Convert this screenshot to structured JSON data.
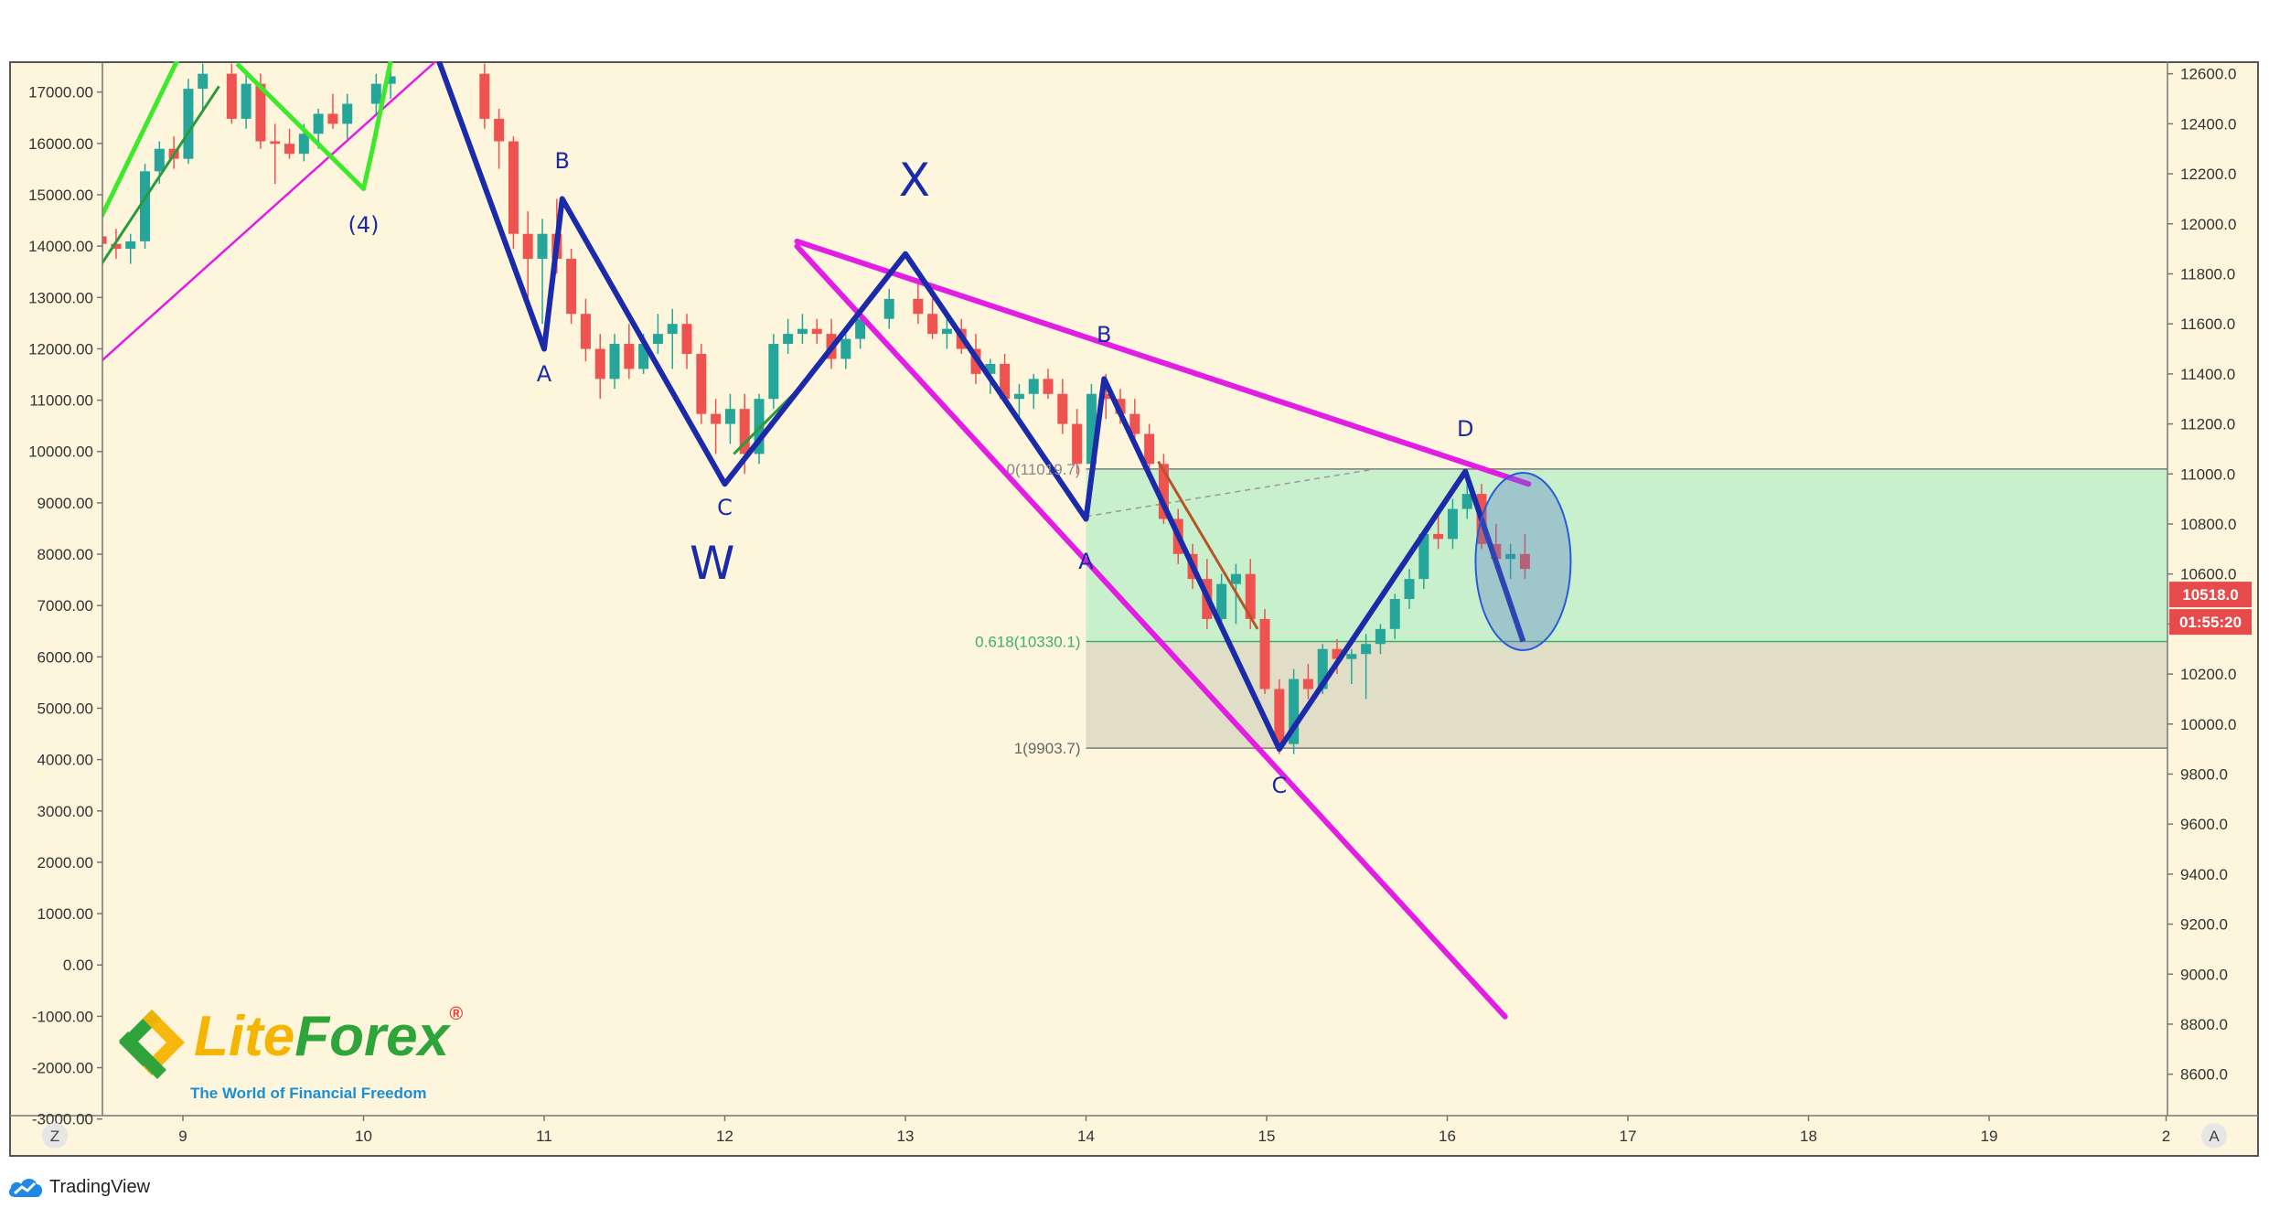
{
  "chart_data": {
    "type": "candlestick",
    "title": "",
    "xlabel": "",
    "ylabel": "",
    "x_axis": {
      "ticks": [
        "9",
        "10",
        "11",
        "12",
        "13",
        "14",
        "15",
        "16",
        "17",
        "18",
        "19",
        "2"
      ]
    },
    "left_axis": {
      "ticks": [
        "17000.00",
        "16000.00",
        "15000.00",
        "14000.00",
        "13000.00",
        "12000.00",
        "11000.00",
        "10000.00",
        "9000.00",
        "8000.00",
        "7000.00",
        "6000.00",
        "5000.00",
        "4000.00",
        "3000.00",
        "2000.00",
        "1000.00",
        "0.00",
        "-1000.00",
        "-2000.00",
        "-3000.00"
      ],
      "range": [
        -3000,
        17600
      ]
    },
    "right_axis": {
      "ticks": [
        "12600.0",
        "12400.0",
        "12200.0",
        "12000.0",
        "11800.0",
        "11600.0",
        "11400.0",
        "11200.0",
        "11000.0",
        "10800.0",
        "10600.0",
        "10400.0",
        "10200.0",
        "10000.0",
        "9800.0",
        "9600.0",
        "9400.0",
        "9200.0",
        "9000.0",
        "8800.0",
        "8600.0"
      ],
      "range": [
        8400,
        12600
      ]
    },
    "price_badge": "10518.0",
    "countdown_badge": "01:55:20",
    "fib_levels": [
      {
        "label": "0(11019.7)",
        "value": 11019.7
      },
      {
        "label": "0.618(10330.1)",
        "value": 10330.1
      },
      {
        "label": "1(9903.7)",
        "value": 9903.7
      }
    ],
    "wave_labels": {
      "wave_4": "(4)",
      "a1": "A",
      "b1": "B",
      "c1": "C",
      "w": "W",
      "x": "X",
      "a2": "A",
      "b2": "B",
      "c2": "C",
      "d": "D"
    },
    "wave_path_points": [
      {
        "label": "A",
        "x": 11.0,
        "price": 11500
      },
      {
        "label": "B",
        "x": 11.1,
        "price": 12100
      },
      {
        "label": "C",
        "x": 12.0,
        "price": 10960
      },
      {
        "label": "X",
        "x": 13.0,
        "price": 11880
      },
      {
        "label": "A",
        "x": 14.0,
        "price": 10820
      },
      {
        "label": "B",
        "x": 14.1,
        "price": 11380
      },
      {
        "label": "C",
        "x": 15.07,
        "price": 9900
      },
      {
        "label": "D",
        "x": 16.1,
        "price": 11010
      }
    ],
    "corner_left": "Z",
    "corner_right": "A",
    "colors": {
      "up": "#26a69a",
      "down": "#ef5350",
      "wave_line": "#1a2aa8",
      "channel": "#e11ee1",
      "impulse": "#3ee82a",
      "fib_upper_zone": "#c9f0cc",
      "fib_lower_zone": "#e0dec6",
      "badge": "#e64a4a"
    },
    "candles": [
      {
        "x": 8.55,
        "o": 11950,
        "h": 12030,
        "l": 11880,
        "c": 11920
      },
      {
        "x": 8.63,
        "o": 11920,
        "h": 11980,
        "l": 11860,
        "c": 11900
      },
      {
        "x": 8.71,
        "o": 11900,
        "h": 11960,
        "l": 11840,
        "c": 11930
      },
      {
        "x": 8.79,
        "o": 11930,
        "h": 12240,
        "l": 11900,
        "c": 12210
      },
      {
        "x": 8.87,
        "o": 12210,
        "h": 12330,
        "l": 12160,
        "c": 12300
      },
      {
        "x": 8.95,
        "o": 12300,
        "h": 12350,
        "l": 12220,
        "c": 12260
      },
      {
        "x": 9.03,
        "o": 12260,
        "h": 12580,
        "l": 12240,
        "c": 12540
      },
      {
        "x": 9.11,
        "o": 12540,
        "h": 12640,
        "l": 12450,
        "c": 12600
      },
      {
        "x": 9.27,
        "o": 12600,
        "h": 12640,
        "l": 12400,
        "c": 12420
      },
      {
        "x": 9.35,
        "o": 12420,
        "h": 12600,
        "l": 12380,
        "c": 12560
      },
      {
        "x": 9.43,
        "o": 12560,
        "h": 12600,
        "l": 12300,
        "c": 12330
      },
      {
        "x": 9.51,
        "o": 12330,
        "h": 12400,
        "l": 12160,
        "c": 12320
      },
      {
        "x": 9.59,
        "o": 12320,
        "h": 12380,
        "l": 12260,
        "c": 12280
      },
      {
        "x": 9.67,
        "o": 12280,
        "h": 12400,
        "l": 12250,
        "c": 12360
      },
      {
        "x": 9.75,
        "o": 12360,
        "h": 12460,
        "l": 12300,
        "c": 12440
      },
      {
        "x": 9.83,
        "o": 12440,
        "h": 12520,
        "l": 12380,
        "c": 12400
      },
      {
        "x": 9.91,
        "o": 12400,
        "h": 12520,
        "l": 12340,
        "c": 12480
      },
      {
        "x": 10.07,
        "o": 12480,
        "h": 12600,
        "l": 12440,
        "c": 12560
      },
      {
        "x": 10.15,
        "o": 12560,
        "h": 12620,
        "l": 12500,
        "c": 12590
      },
      {
        "x": 10.67,
        "o": 12600,
        "h": 12640,
        "l": 12380,
        "c": 12420
      },
      {
        "x": 10.75,
        "o": 12420,
        "h": 12460,
        "l": 12220,
        "c": 12330
      },
      {
        "x": 10.83,
        "o": 12330,
        "h": 12350,
        "l": 11900,
        "c": 11960
      },
      {
        "x": 10.91,
        "o": 11960,
        "h": 12050,
        "l": 11700,
        "c": 11860
      },
      {
        "x": 10.99,
        "o": 11860,
        "h": 12020,
        "l": 11600,
        "c": 11960
      },
      {
        "x": 11.07,
        "o": 11960,
        "h": 12100,
        "l": 11800,
        "c": 11860
      },
      {
        "x": 11.15,
        "o": 11860,
        "h": 11900,
        "l": 11600,
        "c": 11640
      },
      {
        "x": 11.23,
        "o": 11640,
        "h": 11700,
        "l": 11450,
        "c": 11500
      },
      {
        "x": 11.31,
        "o": 11500,
        "h": 11560,
        "l": 11300,
        "c": 11380
      },
      {
        "x": 11.39,
        "o": 11380,
        "h": 11560,
        "l": 11340,
        "c": 11520
      },
      {
        "x": 11.47,
        "o": 11520,
        "h": 11600,
        "l": 11380,
        "c": 11420
      },
      {
        "x": 11.55,
        "o": 11420,
        "h": 11560,
        "l": 11400,
        "c": 11520
      },
      {
        "x": 11.63,
        "o": 11520,
        "h": 11640,
        "l": 11480,
        "c": 11560
      },
      {
        "x": 11.71,
        "o": 11560,
        "h": 11660,
        "l": 11420,
        "c": 11600
      },
      {
        "x": 11.79,
        "o": 11600,
        "h": 11640,
        "l": 11420,
        "c": 11480
      },
      {
        "x": 11.87,
        "o": 11480,
        "h": 11520,
        "l": 11200,
        "c": 11240
      },
      {
        "x": 11.95,
        "o": 11240,
        "h": 11300,
        "l": 11080,
        "c": 11200
      },
      {
        "x": 12.03,
        "o": 11200,
        "h": 11320,
        "l": 11120,
        "c": 11260
      },
      {
        "x": 12.11,
        "o": 11260,
        "h": 11320,
        "l": 11000,
        "c": 11080
      },
      {
        "x": 12.19,
        "o": 11080,
        "h": 11320,
        "l": 11040,
        "c": 11300
      },
      {
        "x": 12.27,
        "o": 11300,
        "h": 11560,
        "l": 11260,
        "c": 11520
      },
      {
        "x": 12.35,
        "o": 11520,
        "h": 11620,
        "l": 11480,
        "c": 11560
      },
      {
        "x": 12.43,
        "o": 11560,
        "h": 11640,
        "l": 11520,
        "c": 11580
      },
      {
        "x": 12.51,
        "o": 11580,
        "h": 11620,
        "l": 11520,
        "c": 11560
      },
      {
        "x": 12.59,
        "o": 11560,
        "h": 11620,
        "l": 11420,
        "c": 11460
      },
      {
        "x": 12.67,
        "o": 11460,
        "h": 11580,
        "l": 11420,
        "c": 11540
      },
      {
        "x": 12.75,
        "o": 11540,
        "h": 11660,
        "l": 11500,
        "c": 11620
      },
      {
        "x": 12.91,
        "o": 11620,
        "h": 11740,
        "l": 11580,
        "c": 11700
      },
      {
        "x": 13.07,
        "o": 11700,
        "h": 11760,
        "l": 11600,
        "c": 11640
      },
      {
        "x": 13.15,
        "o": 11640,
        "h": 11700,
        "l": 11540,
        "c": 11560
      },
      {
        "x": 13.23,
        "o": 11560,
        "h": 11620,
        "l": 11500,
        "c": 11580
      },
      {
        "x": 13.31,
        "o": 11580,
        "h": 11620,
        "l": 11480,
        "c": 11500
      },
      {
        "x": 13.39,
        "o": 11500,
        "h": 11560,
        "l": 11360,
        "c": 11400
      },
      {
        "x": 13.47,
        "o": 11400,
        "h": 11460,
        "l": 11320,
        "c": 11440
      },
      {
        "x": 13.55,
        "o": 11440,
        "h": 11480,
        "l": 11280,
        "c": 11300
      },
      {
        "x": 13.63,
        "o": 11300,
        "h": 11360,
        "l": 11220,
        "c": 11320
      },
      {
        "x": 13.71,
        "o": 11320,
        "h": 11400,
        "l": 11260,
        "c": 11380
      },
      {
        "x": 13.79,
        "o": 11380,
        "h": 11420,
        "l": 11300,
        "c": 11320
      },
      {
        "x": 13.87,
        "o": 11320,
        "h": 11380,
        "l": 11160,
        "c": 11200
      },
      {
        "x": 13.95,
        "o": 11200,
        "h": 11260,
        "l": 11000,
        "c": 11040
      },
      {
        "x": 14.03,
        "o": 11040,
        "h": 11360,
        "l": 11000,
        "c": 11320
      },
      {
        "x": 14.11,
        "o": 11320,
        "h": 11400,
        "l": 11220,
        "c": 11300
      },
      {
        "x": 14.19,
        "o": 11300,
        "h": 11340,
        "l": 11200,
        "c": 11240
      },
      {
        "x": 14.27,
        "o": 11240,
        "h": 11300,
        "l": 11140,
        "c": 11160
      },
      {
        "x": 14.35,
        "o": 11160,
        "h": 11200,
        "l": 11020,
        "c": 11040
      },
      {
        "x": 14.43,
        "o": 11040,
        "h": 11080,
        "l": 10800,
        "c": 10820
      },
      {
        "x": 14.51,
        "o": 10820,
        "h": 10860,
        "l": 10640,
        "c": 10680
      },
      {
        "x": 14.59,
        "o": 10680,
        "h": 10720,
        "l": 10540,
        "c": 10580
      },
      {
        "x": 14.67,
        "o": 10580,
        "h": 10660,
        "l": 10380,
        "c": 10420
      },
      {
        "x": 14.75,
        "o": 10420,
        "h": 10600,
        "l": 10380,
        "c": 10560
      },
      {
        "x": 14.83,
        "o": 10560,
        "h": 10640,
        "l": 10400,
        "c": 10600
      },
      {
        "x": 14.91,
        "o": 10600,
        "h": 10660,
        "l": 10380,
        "c": 10420
      },
      {
        "x": 14.99,
        "o": 10420,
        "h": 10460,
        "l": 10120,
        "c": 10140
      },
      {
        "x": 15.07,
        "o": 10140,
        "h": 10180,
        "l": 9880,
        "c": 9920
      },
      {
        "x": 15.15,
        "o": 9920,
        "h": 10220,
        "l": 9880,
        "c": 10180
      },
      {
        "x": 15.23,
        "o": 10180,
        "h": 10240,
        "l": 10100,
        "c": 10140
      },
      {
        "x": 15.31,
        "o": 10140,
        "h": 10320,
        "l": 10120,
        "c": 10300
      },
      {
        "x": 15.39,
        "o": 10300,
        "h": 10340,
        "l": 10200,
        "c": 10260
      },
      {
        "x": 15.47,
        "o": 10260,
        "h": 10300,
        "l": 10160,
        "c": 10280
      },
      {
        "x": 15.55,
        "o": 10280,
        "h": 10360,
        "l": 10100,
        "c": 10320
      },
      {
        "x": 15.63,
        "o": 10320,
        "h": 10400,
        "l": 10280,
        "c": 10380
      },
      {
        "x": 15.71,
        "o": 10380,
        "h": 10520,
        "l": 10340,
        "c": 10500
      },
      {
        "x": 15.79,
        "o": 10500,
        "h": 10620,
        "l": 10460,
        "c": 10580
      },
      {
        "x": 15.87,
        "o": 10580,
        "h": 10780,
        "l": 10540,
        "c": 10760
      },
      {
        "x": 15.95,
        "o": 10760,
        "h": 10860,
        "l": 10700,
        "c": 10740
      },
      {
        "x": 16.03,
        "o": 10740,
        "h": 10900,
        "l": 10700,
        "c": 10860
      },
      {
        "x": 16.11,
        "o": 10860,
        "h": 10980,
        "l": 10820,
        "c": 10920
      },
      {
        "x": 16.19,
        "o": 10920,
        "h": 10960,
        "l": 10700,
        "c": 10720
      },
      {
        "x": 16.27,
        "o": 10720,
        "h": 10800,
        "l": 10620,
        "c": 10660
      },
      {
        "x": 16.35,
        "o": 10660,
        "h": 10720,
        "l": 10580,
        "c": 10680
      },
      {
        "x": 16.43,
        "o": 10680,
        "h": 10760,
        "l": 10580,
        "c": 10620
      }
    ]
  },
  "logo": {
    "brand_part1": "Lite",
    "brand_part2": "Forex",
    "registered": "®",
    "tagline": "The World of Financial Freedom"
  },
  "footer": {
    "platform": "TradingView"
  }
}
